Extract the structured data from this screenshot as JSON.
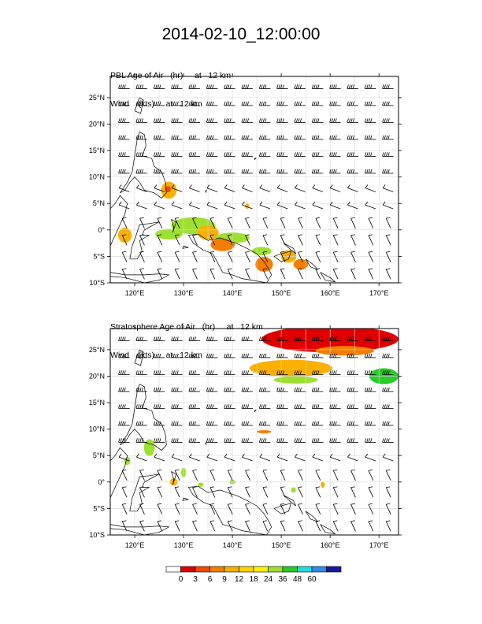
{
  "title": "2014-02-10_12:00:00",
  "panels": [
    {
      "label_line1": "PBL Age of Air   (hr)     at   12 km",
      "label_line2": "Wind    (kts)     at   12 km"
    },
    {
      "label_line1": "Stratosphere Age of Air   (hr)     at   12 km",
      "label_line2": "Wind    (kts)     at   12 km"
    }
  ],
  "chart_data": {
    "type": "map",
    "lon_range": [
      115,
      174
    ],
    "lat_range": [
      -10,
      29
    ],
    "lon_ticks": [
      120,
      130,
      140,
      150,
      160,
      170
    ],
    "lon_tick_labels": [
      "120°E",
      "130°E",
      "140°E",
      "150°E",
      "160°E",
      "170°E"
    ],
    "lat_ticks": [
      -10,
      -5,
      0,
      5,
      10,
      15,
      20,
      25
    ],
    "lat_tick_labels": [
      "10°S",
      "5°S",
      "0°",
      "5°N",
      "10°N",
      "15°N",
      "20°N",
      "25°N"
    ],
    "colorbar": {
      "levels": [
        0,
        3,
        6,
        9,
        12,
        18,
        24,
        36,
        48,
        60
      ],
      "labels": [
        "0",
        "3",
        "6",
        "9",
        "12",
        "18",
        "24",
        "36",
        "48",
        "60"
      ],
      "colors": [
        "#ffffff",
        "#e00000",
        "#ee4a00",
        "#f47e00",
        "#f9b000",
        "#fbd400",
        "#fff200",
        "#9ee030",
        "#28cc28",
        "#20dcdc",
        "#2e8be8",
        "#1a1a9a"
      ]
    },
    "pbl_patches": [
      {
        "color": "#f9b000",
        "lon": 127,
        "lat": 7.5,
        "rx": 1.6,
        "ry": 1.6
      },
      {
        "color": "#ee4a00",
        "lon": 126.8,
        "lat": 7.7,
        "rx": 0.6,
        "ry": 0.6
      },
      {
        "color": "#9ee030",
        "lon": 132,
        "lat": 0.8,
        "rx": 4.5,
        "ry": 1.6
      },
      {
        "color": "#9ee030",
        "lon": 127,
        "lat": -0.8,
        "rx": 2.8,
        "ry": 1.0
      },
      {
        "color": "#f9b000",
        "lon": 135,
        "lat": -0.5,
        "rx": 2.2,
        "ry": 1.4
      },
      {
        "color": "#9ee030",
        "lon": 140,
        "lat": -1.5,
        "rx": 3.5,
        "ry": 1.0
      },
      {
        "color": "#f47e00",
        "lon": 138,
        "lat": -2.8,
        "rx": 2.5,
        "ry": 1.2
      },
      {
        "color": "#9ee030",
        "lon": 146,
        "lat": -4.0,
        "rx": 2.0,
        "ry": 0.8
      },
      {
        "color": "#f47e00",
        "lon": 146.5,
        "lat": -6.5,
        "rx": 1.8,
        "ry": 1.4
      },
      {
        "color": "#f9b000",
        "lon": 151.5,
        "lat": -5.0,
        "rx": 1.6,
        "ry": 1.2
      },
      {
        "color": "#f47e00",
        "lon": 154,
        "lat": -6.5,
        "rx": 1.5,
        "ry": 1.0
      },
      {
        "color": "#f9b000",
        "lon": 118,
        "lat": -1.0,
        "rx": 1.4,
        "ry": 1.4
      },
      {
        "color": "#f9b000",
        "lon": 143,
        "lat": 4.5,
        "rx": 0.4,
        "ry": 0.5
      }
    ],
    "strat_patches": [
      {
        "color": "#e00000",
        "lon": 160,
        "lat": 27,
        "rx": 14,
        "ry": 2.5
      },
      {
        "color": "#f47e00",
        "lon": 163,
        "lat": 24.8,
        "rx": 6,
        "ry": 0.9
      },
      {
        "color": "#f9b000",
        "lon": 152,
        "lat": 21.5,
        "rx": 8.5,
        "ry": 1.6
      },
      {
        "color": "#9ee030",
        "lon": 153,
        "lat": 19.3,
        "rx": 4.5,
        "ry": 0.7
      },
      {
        "color": "#28cc28",
        "lon": 171,
        "lat": 20,
        "rx": 3.0,
        "ry": 1.5
      },
      {
        "color": "#f47e00",
        "lon": 146.5,
        "lat": 9.5,
        "rx": 1.5,
        "ry": 0.3
      },
      {
        "color": "#9ee030",
        "lon": 123,
        "lat": 6.5,
        "rx": 1.1,
        "ry": 1.6
      },
      {
        "color": "#9ee030",
        "lon": 118.5,
        "lat": 4.0,
        "rx": 0.6,
        "ry": 0.8
      },
      {
        "color": "#9ee030",
        "lon": 130,
        "lat": 1.8,
        "rx": 0.5,
        "ry": 0.9
      },
      {
        "color": "#9ee030",
        "lon": 133.5,
        "lat": -0.5,
        "rx": 0.6,
        "ry": 0.4
      },
      {
        "color": "#f9b000",
        "lon": 128,
        "lat": 0.0,
        "rx": 0.8,
        "ry": 0.7
      },
      {
        "color": "#9ee030",
        "lon": 140,
        "lat": 0.0,
        "rx": 0.6,
        "ry": 0.4
      },
      {
        "color": "#9ee030",
        "lon": 152.5,
        "lat": -1.5,
        "rx": 0.5,
        "ry": 0.5
      },
      {
        "color": "#f9b000",
        "lon": 158.5,
        "lat": -0.5,
        "rx": 0.4,
        "ry": 0.6
      }
    ]
  }
}
